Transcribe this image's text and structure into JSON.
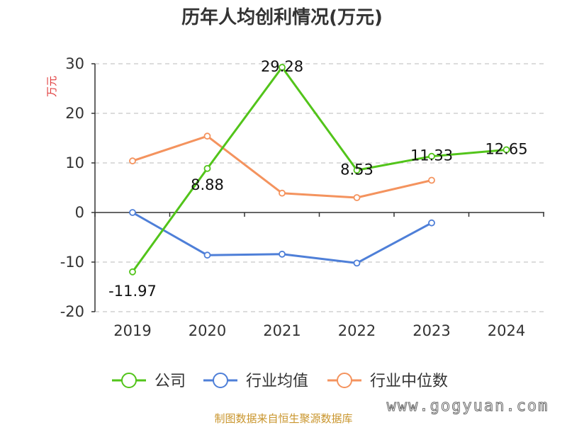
{
  "chart_data": {
    "type": "line",
    "title": "历年人均创利情况(万元)",
    "ylabel": "万元",
    "xlabel": "",
    "categories": [
      "2019",
      "2020",
      "2021",
      "2022",
      "2023",
      "2024"
    ],
    "ylim": [
      -20,
      30
    ],
    "yticks": [
      30,
      20,
      10,
      0,
      -10,
      -20
    ],
    "grid": true,
    "legend_position": "bottom",
    "series": [
      {
        "name": "公司",
        "color": "#52c41a",
        "values": [
          -11.97,
          8.88,
          29.28,
          8.53,
          11.33,
          12.65
        ],
        "labels": [
          "-11.97",
          "8.88",
          "29.28",
          "8.53",
          "11.33",
          "12.65"
        ]
      },
      {
        "name": "行业均值",
        "color": "#4e7fd8",
        "values": [
          0.0,
          -8.6,
          -8.4,
          -10.2,
          -2.1,
          null
        ]
      },
      {
        "name": "行业中位数",
        "color": "#f4935e",
        "values": [
          10.4,
          15.4,
          3.9,
          3.0,
          6.5,
          null
        ]
      }
    ]
  },
  "footer": {
    "source": "制图数据来自恒生聚源数据库",
    "watermark": "www.gogyuan.com"
  }
}
